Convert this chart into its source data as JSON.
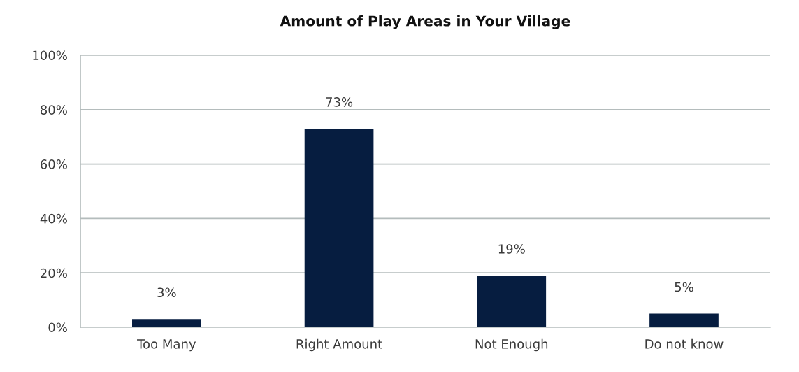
{
  "chart_data": {
    "type": "bar",
    "title": "Amount of Play Areas in Your Village",
    "categories": [
      "Too Many",
      "Right Amount",
      "Not Enough",
      "Do not know"
    ],
    "values": [
      3,
      73,
      19,
      5
    ],
    "color": "#061d40",
    "value_labels": [
      "3%",
      "73%",
      "19%",
      "5%"
    ],
    "ylim": [
      0,
      100
    ],
    "yticks": [
      {
        "value": 0,
        "label": "0%"
      },
      {
        "value": 20,
        "label": "20%"
      },
      {
        "value": 40,
        "label": "40%"
      },
      {
        "value": 60,
        "label": "60%"
      },
      {
        "value": 80,
        "label": "80%"
      },
      {
        "value": 100,
        "label": "100%"
      }
    ],
    "grid": "y"
  }
}
